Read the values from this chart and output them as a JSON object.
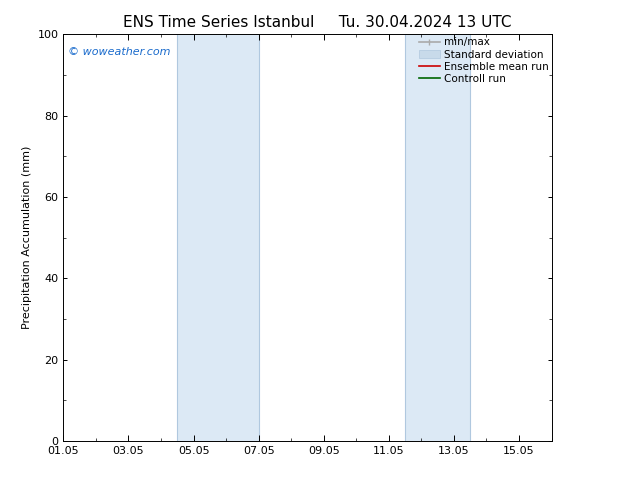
{
  "title_left": "ENS Time Series Istanbul",
  "title_right": "Tu. 30.04.2024 13 UTC",
  "ylabel": "Precipitation Accumulation (mm)",
  "ylim": [
    0,
    100
  ],
  "yticks": [
    0,
    20,
    40,
    60,
    80,
    100
  ],
  "xlim": [
    0,
    15
  ],
  "xtick_labels": [
    "01.05",
    "03.05",
    "05.05",
    "07.05",
    "09.05",
    "11.05",
    "13.05",
    "15.05"
  ],
  "xtick_positions": [
    0,
    2,
    4,
    6,
    8,
    10,
    12,
    14
  ],
  "shaded_bands": [
    {
      "x_start": 3.5,
      "x_end": 6.0,
      "color": "#dce9f5"
    },
    {
      "x_start": 10.5,
      "x_end": 12.5,
      "color": "#dce9f5"
    }
  ],
  "band_line_color": "#b0c8df",
  "watermark_text": "© woweather.com",
  "watermark_color": "#1a6bcc",
  "legend_entries": [
    {
      "label": "min/max",
      "color": "#aaaaaa",
      "lw": 1.2,
      "style": "line_with_bars"
    },
    {
      "label": "Standard deviation",
      "color": "#c8daea",
      "lw": 6,
      "style": "band"
    },
    {
      "label": "Ensemble mean run",
      "color": "#cc0000",
      "lw": 1.2,
      "style": "line"
    },
    {
      "label": "Controll run",
      "color": "#006600",
      "lw": 1.2,
      "style": "line"
    }
  ],
  "bg_color": "#ffffff",
  "font_size_title": 11,
  "font_size_axis": 8,
  "font_size_legend": 7.5,
  "font_size_ticks": 8,
  "font_size_watermark": 8
}
